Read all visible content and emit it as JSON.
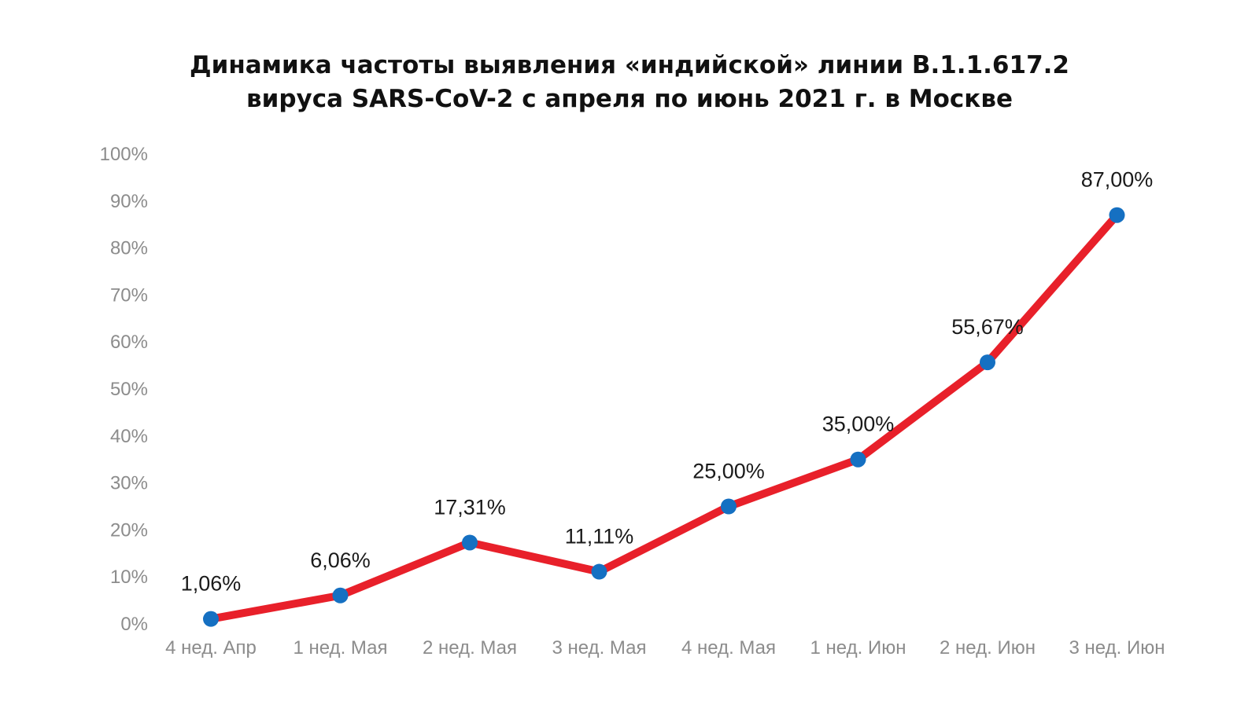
{
  "chart_data": {
    "type": "line",
    "title_lines": [
      "Динамика частоты выявления «индийской» линии B.1.1.617.2",
      "вируса SARS-CoV-2 с апреля по июнь 2021 г. в Москве"
    ],
    "categories": [
      "4 нед. Апр",
      "1 нед. Мая",
      "2 нед. Мая",
      "3 нед. Мая",
      "4 нед. Мая",
      "1 нед. Июн",
      "2 нед. Июн",
      "3 нед. Июн"
    ],
    "values": [
      1.06,
      6.06,
      17.31,
      11.11,
      25.0,
      35.0,
      55.67,
      87.0
    ],
    "data_labels": [
      "1,06%",
      "6,06%",
      "17,31%",
      "11,11%",
      "25,00%",
      "35,00%",
      "55,67%",
      "87,00%"
    ],
    "y_ticks": [
      0,
      10,
      20,
      30,
      40,
      50,
      60,
      70,
      80,
      90,
      100
    ],
    "y_tick_labels": [
      "0%",
      "10%",
      "20%",
      "30%",
      "40%",
      "50%",
      "60%",
      "70%",
      "80%",
      "90%",
      "100%"
    ],
    "ylim": [
      0,
      100
    ],
    "grid": false,
    "legend": "none",
    "line_color": "#e8202a",
    "marker_color": "#1570c2"
  }
}
